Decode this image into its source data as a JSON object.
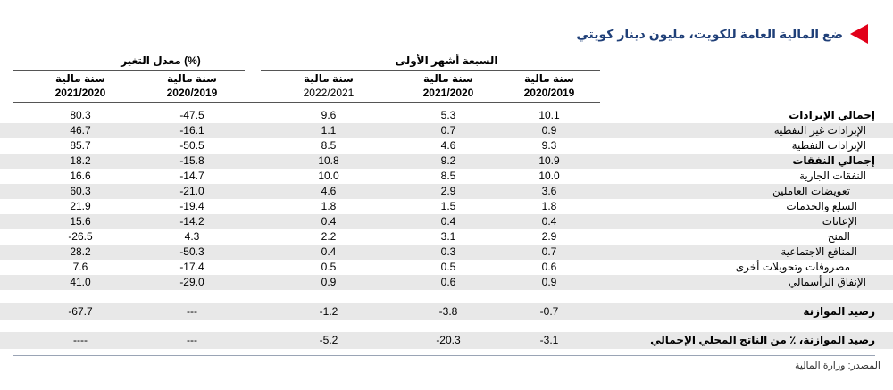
{
  "title": "ضع المالية العامة للكويت، مليون دينار كويتي",
  "group_headers": {
    "change": "معدل التغير (%)",
    "seven_months": "السبعة أشهر الأولى"
  },
  "columns": [
    {
      "line1": "سنة مالية",
      "line2": "2021/2020"
    },
    {
      "line1": "سنة مالية",
      "line2": "2020/2019"
    },
    {
      "line1": "سنة مالية",
      "line2": "2022/2021"
    },
    {
      "line1": "سنة مالية",
      "line2": "2021/2020"
    },
    {
      "line1": "سنة مالية",
      "line2": "2020/2019"
    }
  ],
  "rows": [
    {
      "label": "إجمالي الإيرادات",
      "bold": true,
      "shaded": false,
      "values": [
        "80.3",
        "-47.5",
        "9.6",
        "5.3",
        "10.1"
      ]
    },
    {
      "label": "الإيرادات غير النفطية",
      "bold": false,
      "shaded": true,
      "values": [
        "46.7",
        "-16.1",
        "1.1",
        "0.7",
        "0.9"
      ]
    },
    {
      "label": "الإيرادات النفطية",
      "bold": false,
      "shaded": false,
      "values": [
        "85.7",
        "-50.5",
        "8.5",
        "4.6",
        "9.3"
      ]
    },
    {
      "label": "إجمالي النفقات",
      "bold": true,
      "shaded": true,
      "values": [
        "18.2",
        "-15.8",
        "10.8",
        "9.2",
        "10.9"
      ]
    },
    {
      "label": "النفقات الجارية",
      "bold": false,
      "shaded": false,
      "values": [
        "16.6",
        "-14.7",
        "10.0",
        "8.5",
        "10.0"
      ]
    },
    {
      "label": "تعويضات العاملين",
      "bold": false,
      "shaded": true,
      "indent": 2,
      "values": [
        "60.3",
        "-21.0",
        "4.6",
        "2.9",
        "3.6"
      ]
    },
    {
      "label": "السلع والخدمات",
      "bold": false,
      "shaded": false,
      "indent": 1,
      "values": [
        "21.9",
        "-19.4",
        "1.8",
        "1.5",
        "1.8"
      ]
    },
    {
      "label": "الإعانات",
      "bold": false,
      "shaded": true,
      "indent": 1,
      "values": [
        "15.6",
        "-14.2",
        "0.4",
        "0.4",
        "0.4"
      ]
    },
    {
      "label": "المنح",
      "bold": false,
      "shaded": false,
      "indent": 2,
      "values": [
        "-26.5",
        "4.3",
        "2.2",
        "3.1",
        "2.9"
      ]
    },
    {
      "label": "المنافع الاجتماعية",
      "bold": false,
      "shaded": true,
      "indent": 1,
      "values": [
        "28.2",
        "-50.3",
        "0.4",
        "0.3",
        "0.7"
      ]
    },
    {
      "label": "مصروفات وتحويلات أخرى",
      "bold": false,
      "shaded": false,
      "indent": 2,
      "values": [
        "7.6",
        "-17.4",
        "0.5",
        "0.5",
        "0.6"
      ]
    },
    {
      "label": "الإنفاق الرأسمالي",
      "bold": false,
      "shaded": true,
      "values": [
        "41.0",
        "-29.0",
        "0.9",
        "0.6",
        "0.9"
      ]
    },
    {
      "label": "",
      "bold": false,
      "shaded": false,
      "values": [
        "",
        "",
        "",
        "",
        ""
      ]
    },
    {
      "label": "رصيد الموازنة",
      "bold": true,
      "shaded": true,
      "values": [
        "-67.7",
        "---",
        "-1.2",
        "-3.8",
        "-0.7"
      ]
    },
    {
      "label": "",
      "bold": false,
      "shaded": false,
      "values": [
        "",
        "",
        "",
        "",
        ""
      ]
    },
    {
      "label": "رصيد الموازنة، ٪ من الناتج المحلي الإجمالي",
      "bold": true,
      "shaded": true,
      "values": [
        "----",
        "---",
        "-5.2",
        "-20.3",
        "-3.1"
      ]
    }
  ],
  "source": "المصدر: وزارة المالية"
}
